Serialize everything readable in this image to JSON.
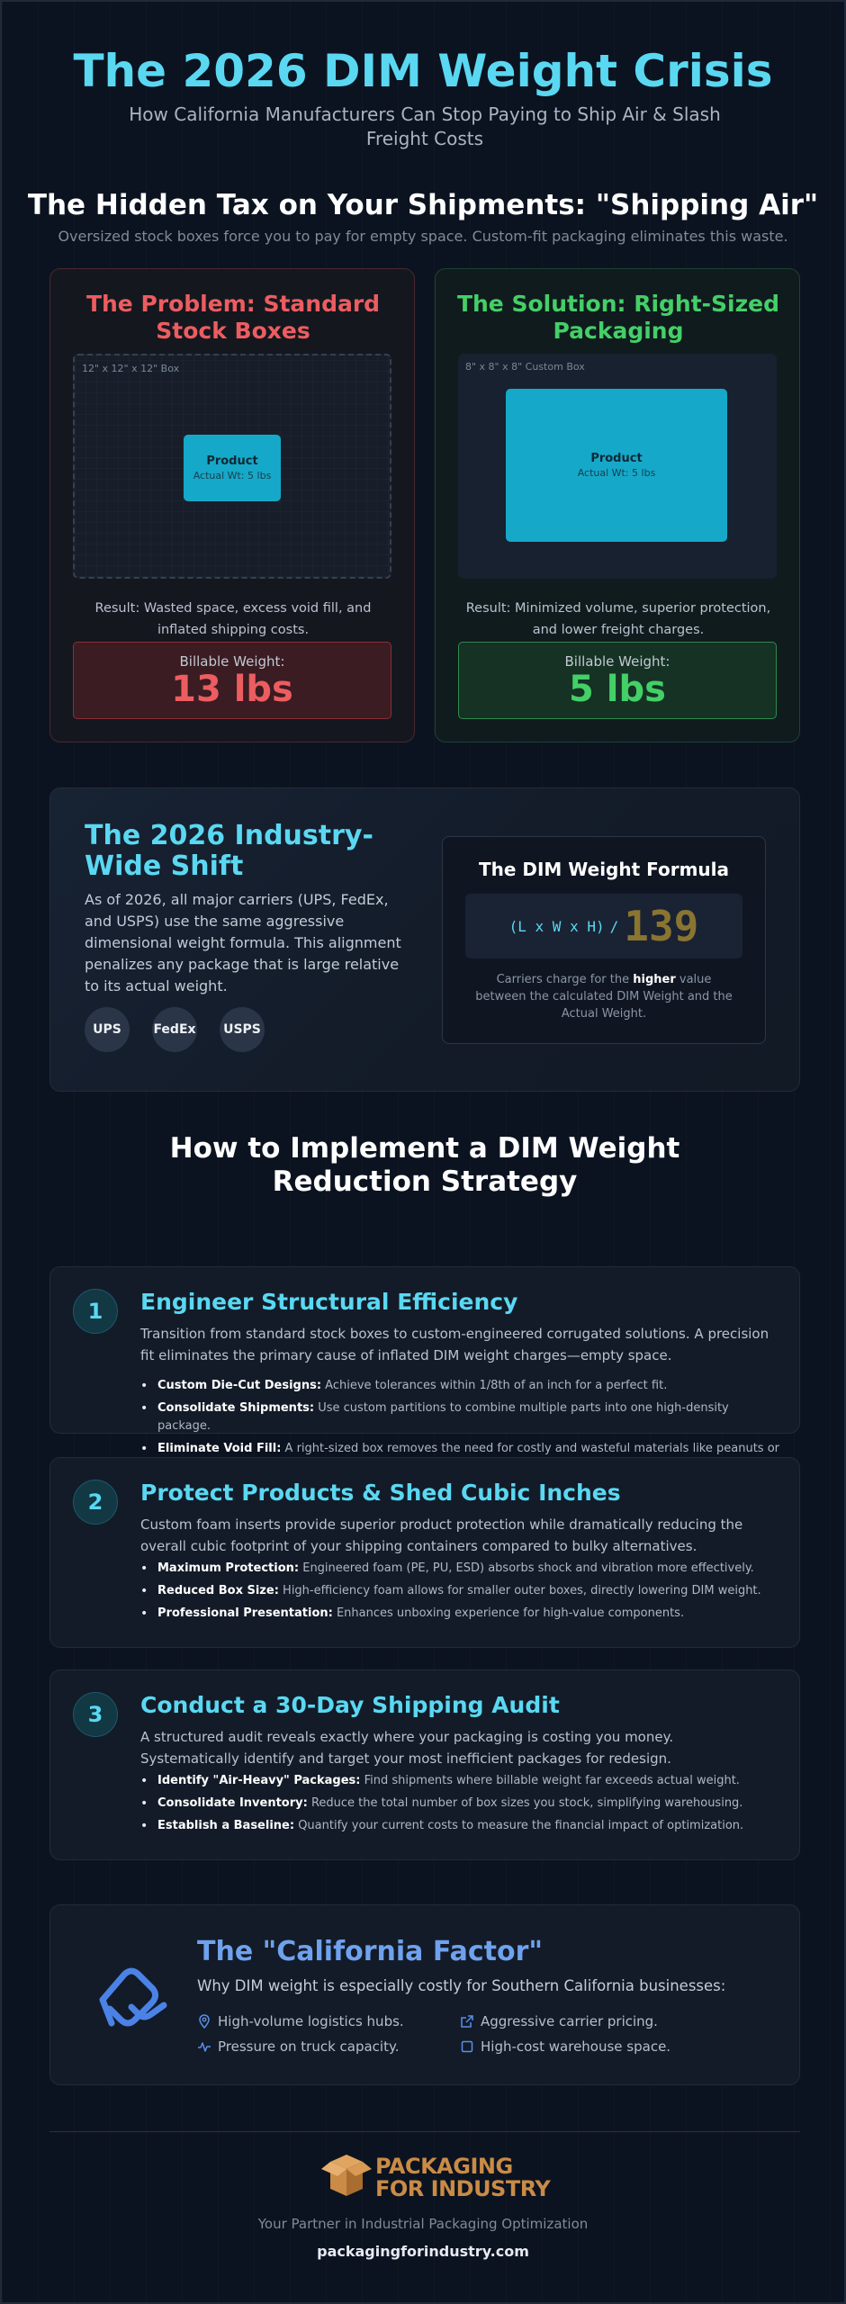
{
  "header": {
    "title": "The 2026 DIM Weight Crisis",
    "subtitle": "How California Manufacturers Can Stop Paying to Ship Air & Slash Freight Costs"
  },
  "hidden_tax": {
    "title": "The Hidden Tax on Your Shipments: \"Shipping Air\"",
    "subtitle": "Oversized stock boxes force you to pay for empty space. Custom-fit packaging eliminates this waste."
  },
  "problem": {
    "title": "The Problem: Standard Stock Boxes",
    "box_label": "12\" x 12\" x 12\" Box",
    "product_name": "Product",
    "product_weight": "Actual Wt: 5 lbs",
    "result": "Result: Wasted space, excess void fill, and inflated shipping costs.",
    "billable_label": "Billable Weight:",
    "billable_value": "13 lbs",
    "color": "#ec5d60"
  },
  "solution": {
    "title": "The Solution: Right-Sized Packaging",
    "box_label": "8\" x 8\" x 8\" Custom Box",
    "product_name": "Product",
    "product_weight": "Actual Wt: 5 lbs",
    "result": "Result: Minimized volume, superior protection, and lower freight charges.",
    "billable_label": "Billable Weight:",
    "billable_value": "5 lbs",
    "color": "#44cf67"
  },
  "shift": {
    "title": "The 2026 Industry-Wide Shift",
    "text": "As of 2026, all major carriers (UPS, FedEx, and USPS) use the same aggressive dimensional weight formula. This alignment penalizes any package that is large relative to its actual weight.",
    "carriers": [
      "UPS",
      "FedEx",
      "USPS"
    ],
    "formula_title": "The DIM Weight Formula",
    "formula_expr": "(L x W x H)",
    "formula_div": "/",
    "formula_divisor": "139",
    "formula_note_pre": "Carriers charge for the ",
    "formula_note_bold": "higher",
    "formula_note_post": " value between the calculated DIM Weight and the Actual Weight."
  },
  "strategy": {
    "title": "How to Implement a DIM Weight Reduction Strategy",
    "steps": [
      {
        "number": "1",
        "title": "Engineer Structural Efficiency",
        "desc": "Transition from standard stock boxes to custom-engineered corrugated solutions. A precision fit eliminates the primary cause of inflated DIM weight charges—empty space.",
        "items": [
          {
            "bold": "Custom Die-Cut Designs:",
            "text": " Achieve tolerances within 1/8th of an inch for a perfect fit."
          },
          {
            "bold": "Consolidate Shipments:",
            "text": " Use custom partitions to combine multiple parts into one high-density package."
          },
          {
            "bold": "Eliminate Void Fill:",
            "text": " A right-sized box removes the need for costly and wasteful materials like peanuts or bubble wrap."
          }
        ]
      },
      {
        "number": "2",
        "title": "Protect Products & Shed Cubic Inches",
        "desc": "Custom foam inserts provide superior product protection while dramatically reducing the overall cubic footprint of your shipping containers compared to bulky alternatives.",
        "items": [
          {
            "bold": "Maximum Protection:",
            "text": " Engineered foam (PE, PU, ESD) absorbs shock and vibration more effectively."
          },
          {
            "bold": "Reduced Box Size:",
            "text": " High-efficiency foam allows for smaller outer boxes, directly lowering DIM weight."
          },
          {
            "bold": "Professional Presentation:",
            "text": " Enhances unboxing experience for high-value components."
          }
        ]
      },
      {
        "number": "3",
        "title": "Conduct a 30-Day Shipping Audit",
        "desc": "A structured audit reveals exactly where your packaging is costing you money. Systematically identify and target your most inefficient packages for redesign.",
        "items": [
          {
            "bold": "Identify \"Air-Heavy\" Packages:",
            "text": " Find shipments where billable weight far exceeds actual weight."
          },
          {
            "bold": "Consolidate Inventory:",
            "text": " Reduce the total number of box sizes you stock, simplifying warehousing."
          },
          {
            "bold": "Establish a Baseline:",
            "text": " Quantify your current costs to measure the financial impact of optimization."
          }
        ]
      }
    ]
  },
  "california": {
    "title": "The \"California Factor\"",
    "subtitle": "Why DIM weight is especially costly for Southern California businesses:",
    "items": [
      {
        "icon": "map-pin-icon",
        "text": "High-volume logistics hubs."
      },
      {
        "icon": "external-link-icon",
        "text": "Aggressive carrier pricing."
      },
      {
        "icon": "activity-icon",
        "text": "Pressure on truck capacity."
      },
      {
        "icon": "square-icon",
        "text": "High-cost warehouse space."
      }
    ]
  },
  "footer": {
    "brand_line1": "PACKAGING",
    "brand_line2": "FOR INDUSTRY",
    "tagline": "Your Partner in Industrial Packaging Optimization",
    "website": "packagingforindustry.com"
  },
  "colors": {
    "accent": "#5ad8f2",
    "background": "#0c1320",
    "brand": "#c98b46",
    "california": "#6fa2ee"
  }
}
